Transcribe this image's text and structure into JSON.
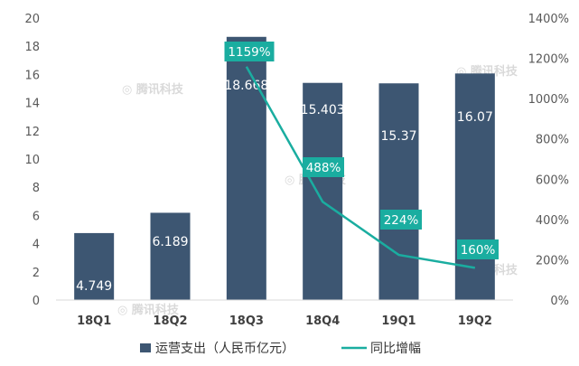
{
  "chart_data": {
    "type": "bar",
    "categories": [
      "18Q1",
      "18Q2",
      "18Q3",
      "18Q4",
      "19Q1",
      "19Q2"
    ],
    "series": [
      {
        "name": "运营支出（人民币亿元）",
        "type": "bar",
        "axis": "left",
        "values": [
          4.749,
          6.189,
          18.668,
          15.403,
          15.37,
          16.07
        ],
        "labels": [
          "4.749",
          "6.189",
          "18.668",
          "15.403",
          "15.37",
          "16.07"
        ],
        "color": "#3d5672"
      },
      {
        "name": "同比增幅",
        "type": "line",
        "axis": "right",
        "values": [
          null,
          null,
          1159,
          488,
          224,
          160
        ],
        "labels": [
          null,
          null,
          "1159%",
          "488%",
          "224%",
          "160%"
        ],
        "color": "#1aada0"
      }
    ],
    "y_left": {
      "range": [
        0,
        20
      ],
      "ticks": [
        "0",
        "2",
        "4",
        "6",
        "8",
        "10",
        "12",
        "14",
        "16",
        "18",
        "20"
      ]
    },
    "y_right": {
      "range": [
        0,
        1400
      ],
      "ticks": [
        "0%",
        "200%",
        "400%",
        "600%",
        "800%",
        "1000%",
        "1200%",
        "1400%"
      ]
    },
    "grid": false,
    "legend_position": "bottom",
    "watermark": "腾讯科技"
  }
}
